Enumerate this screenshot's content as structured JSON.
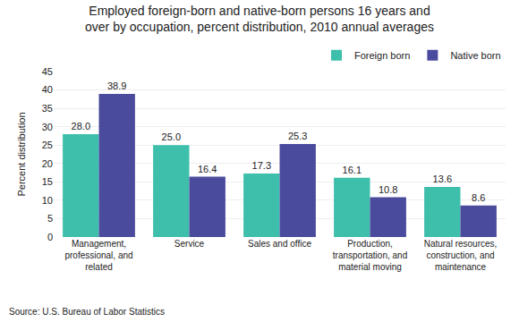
{
  "chart_data": {
    "type": "bar",
    "title": "Employed foreign-born and native-born persons 16 years and\nover by occupation, percent distribution, 2010 annual averages",
    "categories": [
      "Management,\nprofessional, and\nrelated",
      "Service",
      "Sales and office",
      "Production,\ntransportation, and\nmaterial moving",
      "Natural resources,\nconstruction, and\nmaintenance"
    ],
    "series": [
      {
        "name": "Foreign born",
        "color": "#3dbfab",
        "values": [
          28.0,
          25.0,
          17.3,
          16.1,
          13.6
        ],
        "value_labels": [
          "28.0",
          "25.0",
          "17.3",
          "16.1",
          "13.6"
        ]
      },
      {
        "name": "Native born",
        "color": "#4b4b9e",
        "values": [
          38.9,
          16.4,
          25.3,
          10.8,
          8.6
        ],
        "value_labels": [
          "38.9",
          "16.4",
          "25.3",
          "10.8",
          "8.6"
        ]
      }
    ],
    "ylabel": "Percent distribution",
    "ylim": [
      0,
      45
    ],
    "yticks": [
      0,
      5,
      10,
      15,
      20,
      25,
      30,
      35,
      40,
      45
    ],
    "grid": true,
    "legend": "upper right",
    "data_labels": true,
    "annotations": [
      "Source: U.S. Bureau of Labor Statistics"
    ]
  }
}
